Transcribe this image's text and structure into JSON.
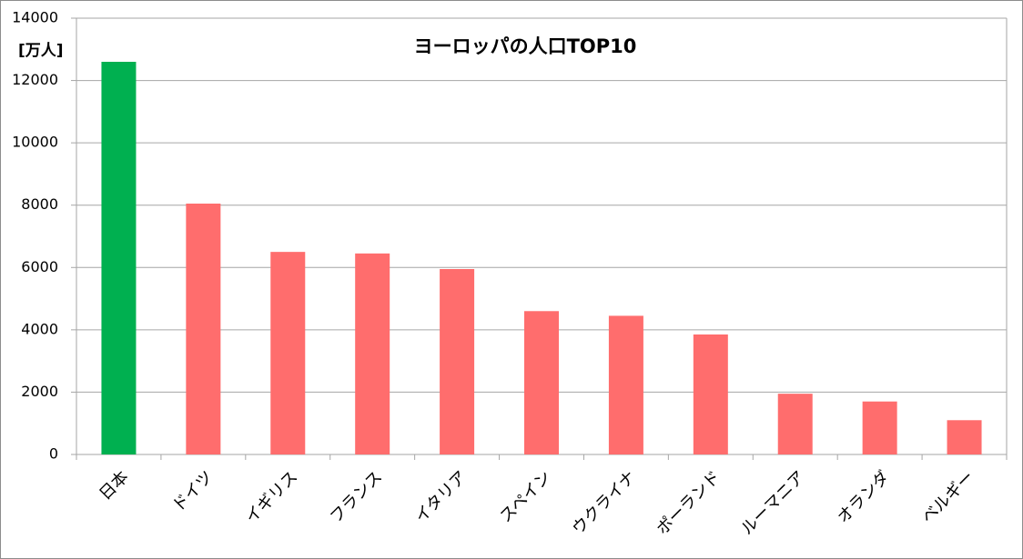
{
  "chart_data": {
    "type": "bar",
    "title": "ヨーロッパの人口TOP10",
    "y_label": "[万人]",
    "categories": [
      "日本",
      "ドイツ",
      "イギリス",
      "フランス",
      "イタリア",
      "スペイン",
      "ウクライナ",
      "ポーランド",
      "ルーマニア",
      "オランダ",
      "ベルギー"
    ],
    "values": [
      12600,
      8050,
      6500,
      6450,
      5950,
      4600,
      4450,
      3850,
      1950,
      1700,
      1100
    ],
    "colors": [
      "#00b050",
      "#ff6d6d",
      "#ff6d6d",
      "#ff6d6d",
      "#ff6d6d",
      "#ff6d6d",
      "#ff6d6d",
      "#ff6d6d",
      "#ff6d6d",
      "#ff6d6d",
      "#ff6d6d"
    ],
    "ylim": [
      0,
      14000
    ],
    "yticks": [
      0,
      2000,
      4000,
      6000,
      8000,
      10000,
      12000,
      14000
    ],
    "grid": true
  }
}
